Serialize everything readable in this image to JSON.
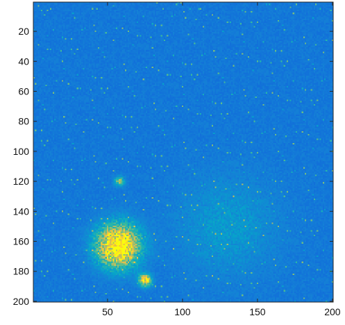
{
  "chart_data": {
    "type": "heatmap",
    "title": "",
    "xlabel": "",
    "ylabel": "",
    "xlim": [
      0.5,
      200.5
    ],
    "ylim": [
      0.5,
      200.5
    ],
    "y_direction": "top-to-bottom",
    "grid": false,
    "colormap": "parula",
    "colormap_stops": [
      "#352a87",
      "#0f5cdd",
      "#1481d6",
      "#06a4ca",
      "#2eb7a4",
      "#87bf77",
      "#d1bb59",
      "#fec832",
      "#f9fb0e"
    ],
    "background_level": 0.22,
    "x_ticks": [
      50,
      100,
      150,
      200
    ],
    "x_tick_labels": [
      "50",
      "100",
      "150",
      "200"
    ],
    "y_ticks": [
      20,
      40,
      60,
      80,
      100,
      120,
      140,
      160,
      180,
      200
    ],
    "y_tick_labels": [
      "20",
      "40",
      "60",
      "80",
      "100",
      "120",
      "140",
      "160",
      "180",
      "200"
    ],
    "hotspots": [
      {
        "x": 57,
        "y": 163,
        "radius": 17,
        "peak": 0.9
      },
      {
        "x": 75,
        "y": 186,
        "radius": 5,
        "peak": 0.7
      },
      {
        "x": 58,
        "y": 120,
        "radius": 4,
        "peak": 0.4
      },
      {
        "x": 130,
        "y": 150,
        "radius": 40,
        "peak": 0.12
      }
    ]
  }
}
